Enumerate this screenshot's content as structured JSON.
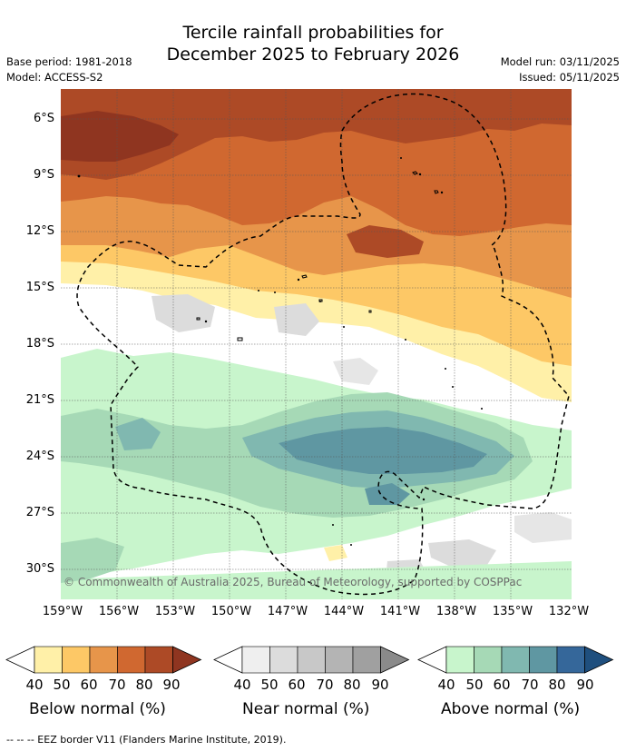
{
  "title": {
    "line1": "Tercile rainfall probabilities for",
    "line2": "December 2025 to February 2026"
  },
  "meta": {
    "base_period": "Base period: 1981-2018",
    "model": "Model: ACCESS-S2",
    "model_run": "Model run: 03/11/2025",
    "issued": "Issued: 05/11/2025"
  },
  "axes": {
    "lat_labels": [
      "6°S",
      "9°S",
      "12°S",
      "15°S",
      "18°S",
      "21°S",
      "24°S",
      "27°S",
      "30°S"
    ],
    "lon_labels": [
      "159°W",
      "156°W",
      "153°W",
      "150°W",
      "147°W",
      "144°W",
      "141°W",
      "138°W",
      "135°W",
      "132°W"
    ]
  },
  "copyright": "© Commonwealth of Australia 2025, Bureau of Meteorology, supported by COSPPac",
  "colorbars": [
    {
      "title": "Below normal (%)",
      "ticks": [
        "40",
        "50",
        "60",
        "70",
        "80",
        "90"
      ],
      "colors": [
        "#fff0a8",
        "#fdc866",
        "#e7954a",
        "#d06830",
        "#ad4a26",
        "#8f3520"
      ]
    },
    {
      "title": "Near normal (%)",
      "ticks": [
        "40",
        "50",
        "60",
        "70",
        "80",
        "90"
      ],
      "colors": [
        "#efefef",
        "#dcdcdc",
        "#c8c8c8",
        "#b4b4b4",
        "#a0a0a0",
        "#8a8a8a"
      ]
    },
    {
      "title": "Above normal (%)",
      "ticks": [
        "40",
        "50",
        "60",
        "70",
        "80",
        "90"
      ],
      "colors": [
        "#c8f5cc",
        "#a6d9b6",
        "#80b8b0",
        "#5f97a2",
        "#35679a",
        "#1f4f7e"
      ]
    }
  ],
  "legend_line": "-- -- -- EEZ border V11 (Flanders Marine Institute, 2019)."
}
